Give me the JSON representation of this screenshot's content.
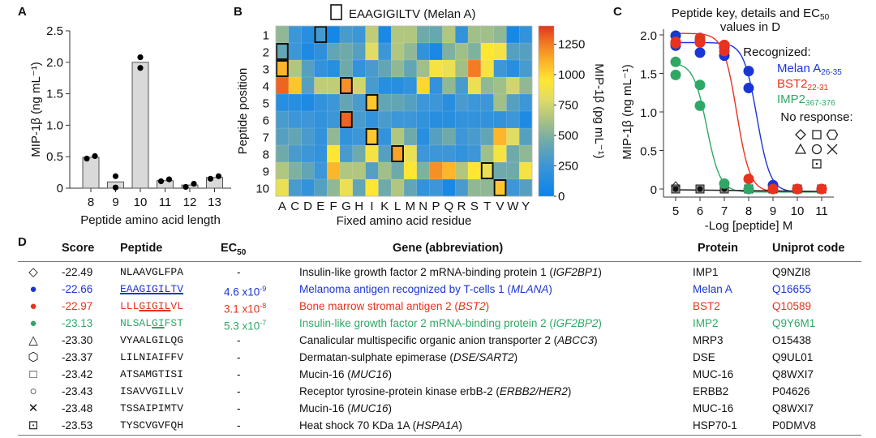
{
  "panels": {
    "A": "A",
    "B": "B",
    "C": "C",
    "D": "D"
  },
  "chart_data": [
    {
      "id": "A",
      "type": "bar",
      "title": "",
      "xlabel": "Peptide amino acid length",
      "ylabel": "MIP-1β (ng mL⁻¹)",
      "ylim": [
        0,
        2.5
      ],
      "yticks": [
        "0",
        "0.5",
        "1.0",
        "1.5",
        "2.0",
        "2.5"
      ],
      "categories": [
        "8",
        "9",
        "10",
        "11",
        "12",
        "13"
      ],
      "values": [
        0.49,
        0.1,
        2.0,
        0.12,
        0.05,
        0.17
      ],
      "points": [
        [
          0.47,
          0.51
        ],
        [
          0.19,
          0.01
        ],
        [
          2.08,
          1.91
        ],
        [
          0.11,
          0.14
        ],
        [
          0.02,
          0.07
        ],
        [
          0.15,
          0.19
        ]
      ],
      "bar_color": "#d9d9d9"
    },
    {
      "id": "B",
      "type": "heatmap",
      "title": "EAAGIGILTV (Melan A)",
      "xlabel": "Fixed amino acid residue",
      "ylabel": "Peptide position",
      "colorbar_label": "MIP-1β (pg mL⁻¹)",
      "colorbar_ticks": [
        "0",
        "250",
        "500",
        "750",
        "1000",
        "1250"
      ],
      "clim": [
        0,
        1400
      ],
      "x": [
        "A",
        "C",
        "D",
        "E",
        "F",
        "G",
        "H",
        "I",
        "K",
        "L",
        "M",
        "N",
        "P",
        "Q",
        "R",
        "S",
        "T",
        "V",
        "W",
        "Y"
      ],
      "y": [
        "1",
        "2",
        "3",
        "4",
        "5",
        "6",
        "7",
        "8",
        "9",
        "10"
      ],
      "highlighted": [
        [
          1,
          "E"
        ],
        [
          2,
          "A"
        ],
        [
          3,
          "A"
        ],
        [
          4,
          "G"
        ],
        [
          5,
          "I"
        ],
        [
          6,
          "G"
        ],
        [
          7,
          "I"
        ],
        [
          8,
          "L"
        ],
        [
          9,
          "T"
        ],
        [
          10,
          "V"
        ]
      ],
      "values": [
        [
          550,
          250,
          150,
          280,
          60,
          300,
          250,
          700,
          80,
          650,
          650,
          450,
          420,
          650,
          200,
          600,
          600,
          550,
          70,
          200
        ],
        [
          400,
          250,
          100,
          180,
          400,
          450,
          350,
          800,
          250,
          650,
          550,
          200,
          80,
          500,
          600,
          500,
          950,
          900,
          350,
          350
        ],
        [
          1100,
          650,
          350,
          200,
          150,
          450,
          200,
          300,
          400,
          550,
          400,
          600,
          900,
          850,
          600,
          1250,
          900,
          250,
          150,
          300
        ],
        [
          1300,
          1050,
          350,
          700,
          700,
          1200,
          750,
          300,
          150,
          150,
          200,
          1000,
          200,
          550,
          300,
          850,
          550,
          600,
          750,
          550
        ],
        [
          150,
          150,
          100,
          200,
          250,
          400,
          300,
          1050,
          400,
          400,
          350,
          250,
          250,
          150,
          300,
          250,
          250,
          600,
          350,
          250
        ],
        [
          300,
          250,
          250,
          200,
          250,
          1300,
          300,
          200,
          300,
          250,
          250,
          200,
          150,
          150,
          200,
          200,
          200,
          200,
          250,
          100
        ],
        [
          350,
          400,
          300,
          200,
          550,
          200,
          250,
          1050,
          200,
          650,
          450,
          150,
          350,
          450,
          250,
          300,
          400,
          1100,
          800,
          350
        ],
        [
          450,
          300,
          250,
          200,
          950,
          300,
          450,
          900,
          350,
          1150,
          850,
          250,
          250,
          250,
          200,
          250,
          600,
          900,
          450,
          550
        ],
        [
          650,
          500,
          400,
          250,
          1100,
          650,
          650,
          350,
          600,
          450,
          950,
          500,
          1200,
          1100,
          650,
          950,
          850,
          450,
          450,
          900
        ],
        [
          850,
          300,
          200,
          350,
          550,
          850,
          400,
          950,
          450,
          650,
          400,
          200,
          250,
          80,
          300,
          550,
          550,
          1050,
          250,
          350
        ]
      ]
    },
    {
      "id": "C",
      "type": "scatter",
      "title": "Peptide key, details and EC50 values in D",
      "title_line1": "Peptide key, details and EC",
      "title_sub": "50",
      "title_line2": "values in D",
      "xlabel": "-Log [peptide] M",
      "ylabel": "MIP-1β (ng mL⁻¹)",
      "xlim": [
        4.5,
        11.5
      ],
      "ylim": [
        0,
        2.0
      ],
      "xticks": [
        "5",
        "6",
        "7",
        "8",
        "9",
        "10",
        "11"
      ],
      "yticks": [
        "0",
        "0.5",
        "1.0",
        "1.5",
        "2.0"
      ],
      "legend": {
        "recognized_label": "Recognized:",
        "no_response_label": "No response:",
        "entries": [
          {
            "name": "Melan A",
            "sub": "26-35",
            "color": "#1a35d6"
          },
          {
            "name": "BST2",
            "sub": "22-31",
            "color": "#e8321e"
          },
          {
            "name": "IMP2",
            "sub": "367-376",
            "color": "#2fa866"
          }
        ],
        "no_response_markers": [
          "diamond",
          "square",
          "hexagon",
          "triangle",
          "circle",
          "cross",
          "dotted-square"
        ]
      },
      "series": [
        {
          "name": "Melan A",
          "color": "#1a35d6",
          "x": [
            5,
            5,
            6,
            6,
            7,
            7,
            8,
            8,
            9,
            10,
            11
          ],
          "y": [
            1.99,
            1.86,
            1.93,
            1.77,
            1.84,
            1.73,
            1.53,
            1.31,
            0.05,
            0,
            0
          ],
          "ec50_log": 8.34,
          "top": 1.9
        },
        {
          "name": "BST2",
          "color": "#e8321e",
          "x": [
            5,
            5,
            6,
            6,
            7,
            7,
            8,
            9,
            10,
            11
          ],
          "y": [
            1.91,
            1.89,
            1.96,
            1.9,
            1.87,
            1.79,
            0.13,
            0,
            0,
            0
          ],
          "ec50_log": 7.51,
          "top": 2.02
        },
        {
          "name": "IMP2",
          "color": "#2fa866",
          "x": [
            5,
            5,
            6,
            6,
            7,
            8
          ],
          "y": [
            1.65,
            1.48,
            1.35,
            1.08,
            0.07,
            0
          ],
          "ec50_log": 6.28,
          "top": 1.64
        },
        {
          "name": "No response",
          "color": "#222222",
          "x": [
            5,
            6,
            7,
            8,
            9,
            10,
            11
          ],
          "y": [
            0,
            0,
            0,
            0,
            0,
            0,
            0
          ]
        }
      ]
    }
  ],
  "table": {
    "headers": {
      "score": "Score",
      "peptide": "Peptide",
      "ec50": "EC",
      "ec50_sub": "50",
      "gene": "Gene (abbreviation)",
      "protein": "Protein",
      "uniprot": "Uniprot code"
    },
    "rows": [
      {
        "symbol": "◇",
        "color": "#111111",
        "score": "-22.49",
        "peptide": "NLAAVGLFPA",
        "underline": "",
        "ec50": "-",
        "ec50_exp": "",
        "gene": "Insulin-like growth factor 2 mRNA-binding protein 1 (",
        "gene_abbr": "IGF2BP1",
        "gene_end": ")",
        "protein": "IMP1",
        "uniprot": "Q9NZI8"
      },
      {
        "symbol": "●",
        "color": "#1a35d6",
        "score": "-22.66",
        "peptide": "EAAGIGILTV",
        "underline": "all",
        "ec50": "4.6 x10",
        "ec50_exp": "-9",
        "gene": "Melanoma antigen recognized by T-cells 1 (",
        "gene_abbr": "MLANA",
        "gene_end": ")",
        "protein": "Melan A",
        "uniprot": "Q16655"
      },
      {
        "symbol": "●",
        "color": "#e8321e",
        "score": "-22.97",
        "peptide": "LLLGIGILVL",
        "underline": "GIGIL",
        "ec50": "3.1 x10",
        "ec50_exp": "-8",
        "gene": "Bone marrow stromal antigen 2 (",
        "gene_abbr": "BST2",
        "gene_end": ")",
        "protein": "BST2",
        "uniprot": "Q10589"
      },
      {
        "symbol": "●",
        "color": "#2fa866",
        "score": "-23.13",
        "peptide": "NLSALGIFST",
        "underline": "GI",
        "ec50": "5.3 x10",
        "ec50_exp": "-7",
        "gene": "Insulin-like growth factor 2 mRNA-binding protein 2 (",
        "gene_abbr": "IGF2BP2",
        "gene_end": ")",
        "protein": "IMP2",
        "uniprot": "Q9Y6M1"
      },
      {
        "symbol": "△",
        "color": "#111111",
        "score": "-23.30",
        "peptide": "VYAALGILQG",
        "underline": "",
        "ec50": "-",
        "ec50_exp": "",
        "gene": "Canalicular multispecific organic anion transporter 2 (",
        "gene_abbr": "ABCC3",
        "gene_end": ")",
        "protein": "MRP3",
        "uniprot": "O15438"
      },
      {
        "symbol": "⬡",
        "color": "#111111",
        "score": "-23.37",
        "peptide": "LILNIAIFFV",
        "underline": "",
        "ec50": "-",
        "ec50_exp": "",
        "gene": "Dermatan-sulphate epimerase (",
        "gene_abbr": "DSE/SART2",
        "gene_end": ")",
        "protein": "DSE",
        "uniprot": "Q9UL01"
      },
      {
        "symbol": "□",
        "color": "#111111",
        "score": "-23.42",
        "peptide": "ATSAMGTISI",
        "underline": "",
        "ec50": "-",
        "ec50_exp": "",
        "gene": "Mucin-16 (",
        "gene_abbr": "MUC16",
        "gene_end": ")",
        "protein": "MUC-16",
        "uniprot": "Q8WXI7"
      },
      {
        "symbol": "○",
        "color": "#111111",
        "score": "-23.43",
        "peptide": "ISAVVGILLV",
        "underline": "",
        "ec50": "-",
        "ec50_exp": "",
        "gene": "Receptor tyrosine-protein kinase erbB-2 (",
        "gene_abbr": "ERBB2/HER2",
        "gene_end": ")",
        "protein": "ERBB2",
        "uniprot": "P04626"
      },
      {
        "symbol": "✕",
        "color": "#111111",
        "score": "-23.48",
        "peptide": "TSSAIPIMTV",
        "underline": "",
        "ec50": "-",
        "ec50_exp": "",
        "gene": "Mucin-16 (",
        "gene_abbr": "MUC16",
        "gene_end": ")",
        "protein": "MUC-16",
        "uniprot": "Q8WXI7"
      },
      {
        "symbol": "⊡",
        "color": "#111111",
        "score": "-23.53",
        "peptide": "TYSCVGVFQH",
        "underline": "",
        "ec50": "-",
        "ec50_exp": "",
        "gene": "Heat shock 70 KDa 1A (",
        "gene_abbr": "HSPA1A",
        "gene_end": ")",
        "protein": "HSP70-1",
        "uniprot": "P0DMV8"
      }
    ]
  }
}
